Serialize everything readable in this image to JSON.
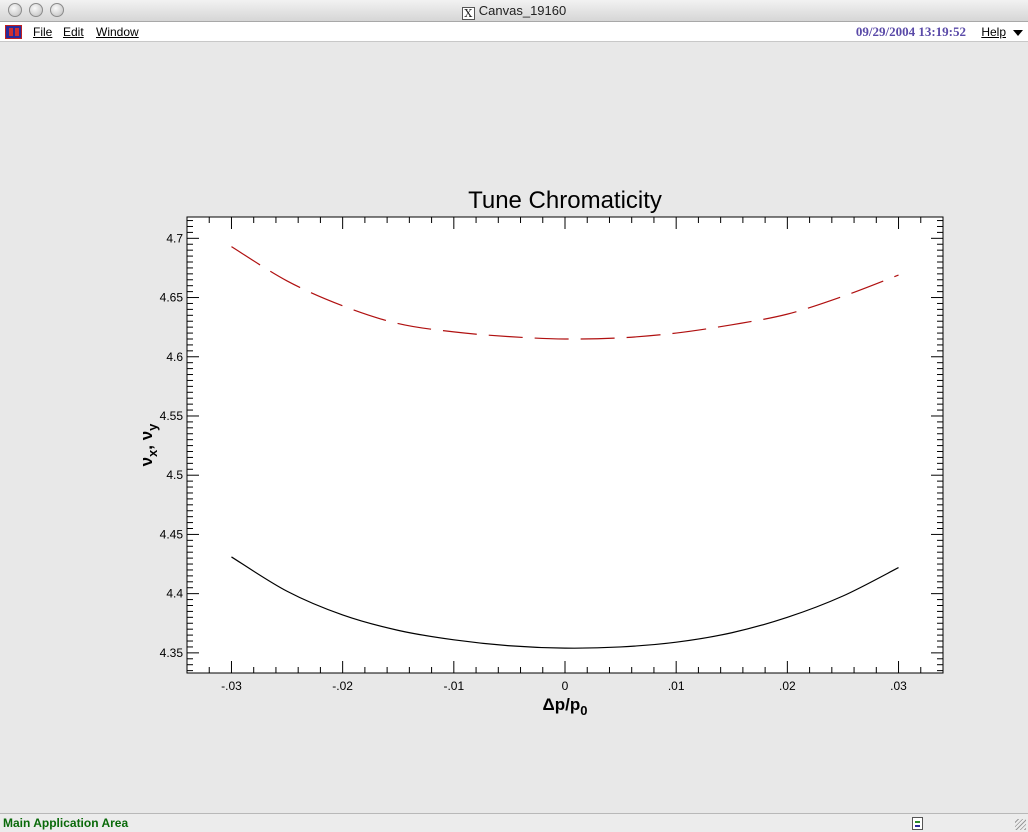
{
  "window": {
    "title": "Canvas_19160"
  },
  "menubar": {
    "file": "File",
    "edit": "Edit",
    "window": "Window",
    "datetime": "09/29/2004 13:19:52",
    "help": "Help"
  },
  "status": {
    "text": "Main Application Area"
  },
  "chart_data": {
    "type": "line",
    "title": "Tune Chromaticity",
    "xlabel": "Δp/p0",
    "ylabel": "νx, νy",
    "xlim": [
      -0.034,
      0.034
    ],
    "ylim": [
      4.333,
      4.718
    ],
    "x_ticks": [
      -0.03,
      -0.02,
      -0.01,
      0,
      0.01,
      0.02,
      0.03
    ],
    "x_tick_labels": [
      "-.03",
      "-.02",
      "-.01",
      "0",
      ".01",
      ".02",
      ".03"
    ],
    "y_ticks": [
      4.35,
      4.4,
      4.45,
      4.5,
      4.55,
      4.6,
      4.65,
      4.7
    ],
    "y_tick_labels": [
      "4.35",
      "4.4",
      "4.45",
      "4.5",
      "4.55",
      "4.6",
      "4.65",
      "4.7"
    ],
    "grid": false,
    "series": [
      {
        "color": "#b01010",
        "style": "dashed",
        "x": [
          -0.03,
          -0.025,
          -0.02,
          -0.015,
          -0.01,
          -0.005,
          0,
          0.005,
          0.01,
          0.015,
          0.02,
          0.025,
          0.03
        ],
        "values": [
          4.693,
          4.664,
          4.643,
          4.628,
          4.621,
          4.617,
          4.615,
          4.616,
          4.62,
          4.627,
          4.636,
          4.651,
          4.669
        ]
      },
      {
        "color": "#000000",
        "style": "solid",
        "x": [
          -0.03,
          -0.025,
          -0.02,
          -0.015,
          -0.01,
          -0.005,
          0,
          0.005,
          0.01,
          0.015,
          0.02,
          0.025,
          0.03
        ],
        "values": [
          4.431,
          4.402,
          4.382,
          4.369,
          4.361,
          4.356,
          4.354,
          4.355,
          4.359,
          4.367,
          4.38,
          4.398,
          4.422
        ]
      }
    ]
  }
}
